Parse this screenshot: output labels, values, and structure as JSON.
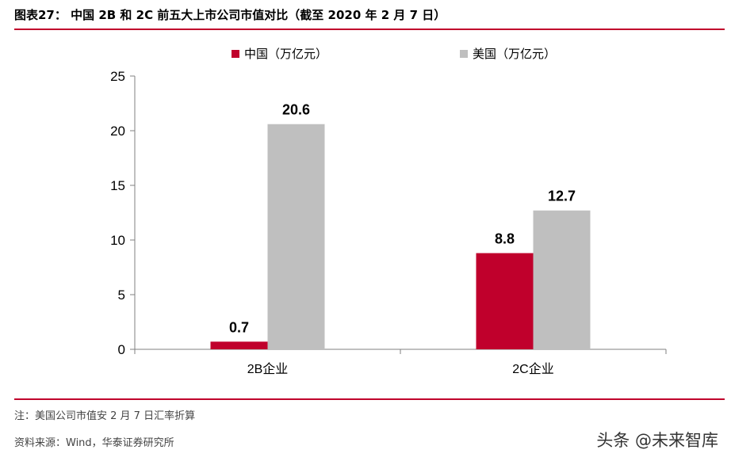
{
  "header": {
    "title": "图表27： 中国 2B 和 2C 前五大上市公司市值对比（截至 2020 年 2 月 7 日）"
  },
  "footer": {
    "note": "注：美国公司市值安 2 月 7 日汇率折算",
    "source": "资料来源：Wind，华泰证券研究所",
    "watermark": "头条 @未来智库"
  },
  "chart_data": {
    "type": "bar",
    "categories": [
      "2B企业",
      "2C企业"
    ],
    "series": [
      {
        "name": "中国（万亿元）",
        "values": [
          0.7,
          8.8
        ],
        "color": "#c0002c"
      },
      {
        "name": "美国（万亿元）",
        "values": [
          20.6,
          12.7
        ],
        "color": "#bfbfbf"
      }
    ],
    "ylim": [
      0,
      25
    ],
    "yticks": [
      0,
      5,
      10,
      15,
      20,
      25
    ],
    "data_labels": true,
    "grid": false,
    "legend_position": "top"
  }
}
